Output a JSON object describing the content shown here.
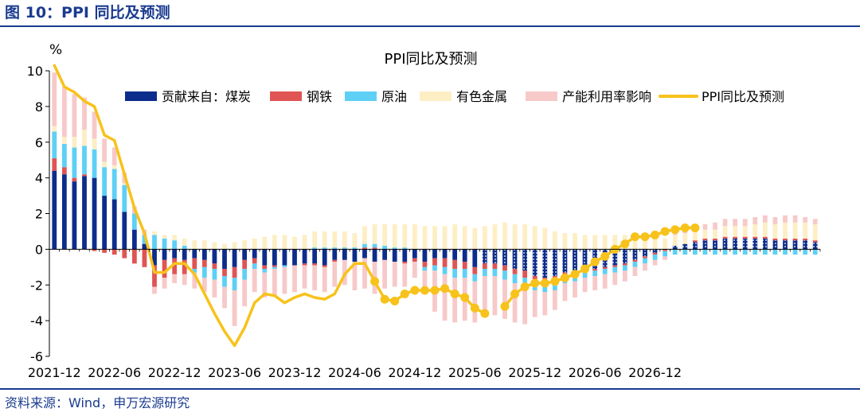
{
  "figure_title": "图 10：PPI 同比及预测",
  "source_note": "资料来源：Wind，申万宏源研究",
  "chart_data": {
    "type": "bar",
    "title": "PPI同比及预测",
    "ylabel": "%",
    "ylim": [
      -6,
      10
    ],
    "y_ticks": [
      -6,
      -4,
      -2,
      0,
      2,
      4,
      6,
      8,
      10
    ],
    "x_start": "2021-12",
    "x_tick_labels": [
      "2021-12",
      "2022-06",
      "2022-12",
      "2023-06",
      "2023-12",
      "2024-06",
      "2024-12",
      "2025-06",
      "2025-12",
      "2026-06",
      "2026-12"
    ],
    "forecast_start": "2025-07",
    "stacked": true,
    "legend_position": "top",
    "series": [
      {
        "name": "贡献来自：煤炭",
        "kind": "bar",
        "color": "#0d2d8c",
        "values": [
          4.4,
          4.2,
          3.8,
          4.1,
          4.0,
          3.0,
          2.8,
          2.1,
          1.1,
          0.3,
          -0.9,
          -0.6,
          -0.5,
          -0.6,
          -0.5,
          -0.6,
          -0.8,
          -1.1,
          -1.0,
          -0.6,
          -0.5,
          -0.9,
          -0.9,
          -0.9,
          -0.9,
          -0.8,
          -0.8,
          -0.9,
          -0.6,
          -0.6,
          -0.7,
          -0.5,
          -0.7,
          -0.6,
          -0.7,
          -0.7,
          -0.5,
          -0.7,
          -0.5,
          -0.5,
          -0.6,
          -0.7,
          -1.0,
          -0.8,
          -0.8,
          -0.9,
          -1.1,
          -1.2,
          -1.5,
          -1.6,
          -1.5,
          -1.3,
          -1.2,
          -1.0,
          -1.1,
          -1.0,
          -0.9,
          -0.8,
          -0.6,
          -0.4,
          -0.2,
          0.0,
          0.2,
          0.3,
          0.4,
          0.5,
          0.5,
          0.6,
          0.6,
          0.6,
          0.6,
          0.6,
          0.5,
          0.5,
          0.5,
          0.5,
          0.4
        ]
      },
      {
        "name": "钢铁",
        "kind": "bar",
        "color": "#e05454",
        "values": [
          0.7,
          0.4,
          0.2,
          0.1,
          -0.1,
          -0.2,
          -0.3,
          -0.5,
          -0.8,
          -1.0,
          -1.2,
          -1.0,
          -0.9,
          -0.8,
          -0.6,
          -0.4,
          -0.3,
          -0.4,
          -0.6,
          -0.5,
          -0.3,
          -0.2,
          -0.1,
          0.0,
          0.0,
          -0.1,
          -0.1,
          -0.1,
          -0.1,
          0.0,
          0.0,
          0.1,
          0.1,
          0.0,
          0.0,
          -0.1,
          -0.2,
          -0.3,
          -0.4,
          -0.5,
          -0.5,
          -0.4,
          -0.4,
          -0.3,
          -0.3,
          -0.3,
          -0.3,
          -0.4,
          -0.3,
          -0.3,
          -0.3,
          -0.2,
          -0.2,
          -0.2,
          -0.1,
          -0.1,
          -0.1,
          -0.1,
          -0.1,
          -0.1,
          -0.1,
          -0.1,
          0.0,
          0.0,
          0.1,
          0.1,
          0.1,
          0.1,
          0.1,
          0.1,
          0.1,
          0.1,
          0.1,
          0.1,
          0.1,
          0.1,
          0.1
        ]
      },
      {
        "name": "原油",
        "kind": "bar",
        "color": "#5ed0f5",
        "values": [
          1.5,
          1.3,
          1.7,
          1.6,
          1.6,
          1.6,
          1.7,
          1.5,
          0.9,
          0.5,
          0.8,
          0.6,
          0.5,
          0.2,
          -0.2,
          -0.6,
          -0.6,
          -0.6,
          -0.7,
          -0.6,
          -0.3,
          -0.2,
          -0.1,
          -0.1,
          0.0,
          0.0,
          0.1,
          0.1,
          0.1,
          0.1,
          0.1,
          0.2,
          0.2,
          0.2,
          0.1,
          0.1,
          0.0,
          -0.2,
          -0.3,
          -0.4,
          -0.5,
          -0.5,
          -0.4,
          -0.4,
          -0.4,
          -0.5,
          -0.5,
          -0.6,
          -0.5,
          -0.5,
          -0.5,
          -0.4,
          -0.4,
          -0.4,
          -0.3,
          -0.3,
          -0.3,
          -0.3,
          -0.3,
          -0.3,
          -0.3,
          -0.3,
          -0.3,
          -0.3,
          -0.3,
          -0.3,
          -0.3,
          -0.3,
          -0.3,
          -0.3,
          -0.3,
          -0.3,
          -0.3,
          -0.3,
          -0.3,
          -0.3,
          -0.3
        ]
      },
      {
        "name": "有色金属",
        "kind": "bar",
        "color": "#fdeec4",
        "values": [
          0.3,
          0.4,
          0.6,
          0.9,
          0.6,
          0.3,
          0.2,
          0.1,
          0.0,
          0.0,
          0.2,
          0.2,
          0.3,
          0.4,
          0.5,
          0.5,
          0.4,
          0.3,
          0.4,
          0.5,
          0.6,
          0.7,
          0.8,
          0.8,
          0.7,
          0.8,
          0.9,
          0.9,
          0.9,
          0.9,
          0.8,
          1.0,
          1.1,
          1.2,
          1.3,
          1.3,
          1.4,
          1.3,
          1.3,
          1.3,
          1.4,
          1.3,
          1.2,
          1.3,
          1.4,
          1.5,
          1.4,
          1.4,
          1.3,
          1.2,
          1.0,
          0.9,
          0.9,
          0.8,
          0.8,
          0.8,
          0.8,
          0.8,
          0.8,
          0.7,
          0.6,
          0.6,
          0.6,
          0.6,
          0.6,
          0.5,
          0.5,
          0.6,
          0.6,
          0.6,
          0.7,
          0.8,
          0.8,
          0.9,
          0.9,
          0.9,
          0.9
        ]
      },
      {
        "name": "产能利用率影响",
        "kind": "bar",
        "color": "#f7c9c9",
        "values": [
          3.0,
          2.8,
          2.4,
          1.8,
          1.5,
          1.3,
          1.0,
          0.6,
          0.4,
          0.3,
          -0.4,
          -0.6,
          -0.5,
          -0.6,
          -0.9,
          -0.8,
          -1.0,
          -1.2,
          -2.0,
          -1.5,
          -1.3,
          -1.4,
          -1.5,
          -1.5,
          -1.5,
          -1.3,
          -1.4,
          -1.4,
          -1.4,
          -1.4,
          -1.6,
          -1.7,
          -1.8,
          -1.6,
          -1.4,
          -1.3,
          -0.9,
          -1.3,
          -2.3,
          -2.6,
          -2.5,
          -2.4,
          -2.3,
          -2.2,
          -2.2,
          -2.2,
          -2.2,
          -2.0,
          -1.5,
          -1.3,
          -1.1,
          -1.0,
          -0.9,
          -0.8,
          -0.8,
          -0.8,
          -0.7,
          -0.6,
          -0.5,
          -0.4,
          -0.3,
          -0.2,
          0.2,
          0.2,
          0.3,
          0.3,
          0.4,
          0.4,
          0.4,
          0.4,
          0.4,
          0.4,
          0.4,
          0.4,
          0.4,
          0.3,
          0.3
        ]
      },
      {
        "name": "PPI同比及预测",
        "kind": "line",
        "color": "#f7c21b",
        "values": [
          10.3,
          9.1,
          8.8,
          8.3,
          8.0,
          6.4,
          6.1,
          4.2,
          2.3,
          0.9,
          -1.3,
          -1.3,
          -0.8,
          -0.8,
          -1.4,
          -2.5,
          -3.6,
          -4.6,
          -5.4,
          -4.4,
          -3.0,
          -2.5,
          -2.6,
          -3.0,
          -2.7,
          -2.5,
          -2.7,
          -2.8,
          -2.5,
          -1.4,
          -0.8,
          -0.8,
          -1.8,
          -2.8,
          -2.9,
          -2.5,
          -2.3,
          -2.3,
          -2.3,
          -2.2,
          -2.5,
          -2.7,
          -3.3,
          -3.6,
          null,
          -3.2,
          -2.5,
          -2.1,
          -1.9,
          -1.9,
          -1.8,
          -1.6,
          -1.4,
          -1.1,
          -0.7,
          -0.4,
          0.0,
          0.3,
          0.7,
          0.7,
          0.8,
          1.0,
          1.1,
          1.2,
          1.2,
          null,
          null,
          null,
          null,
          null,
          null,
          null,
          null,
          null,
          null,
          null,
          null
        ]
      }
    ]
  }
}
